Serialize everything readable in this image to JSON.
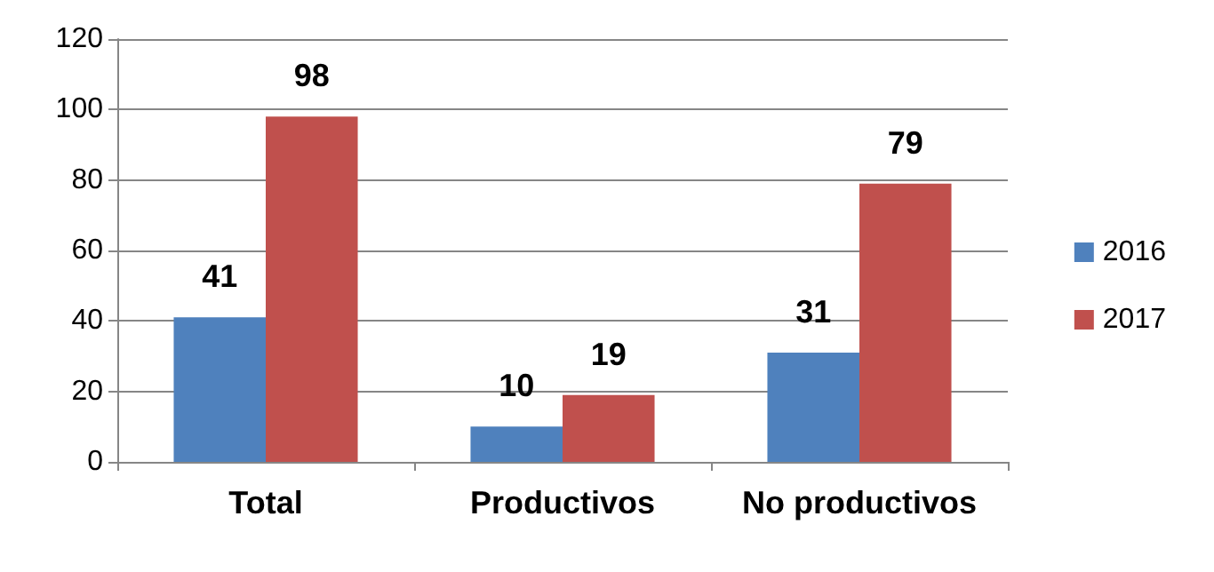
{
  "chart_data": {
    "type": "bar",
    "categories": [
      "Total",
      "Productivos",
      "No productivos"
    ],
    "series": [
      {
        "name": "2016",
        "color": "#4f81bd",
        "values": [
          41,
          10,
          31
        ]
      },
      {
        "name": "2017",
        "color": "#c0504d",
        "values": [
          98,
          19,
          79
        ]
      }
    ],
    "ylim": [
      0,
      120
    ],
    "yticks": [
      0,
      20,
      40,
      60,
      80,
      100,
      120
    ],
    "grid": "y",
    "legend": "right",
    "data_labels": true
  }
}
